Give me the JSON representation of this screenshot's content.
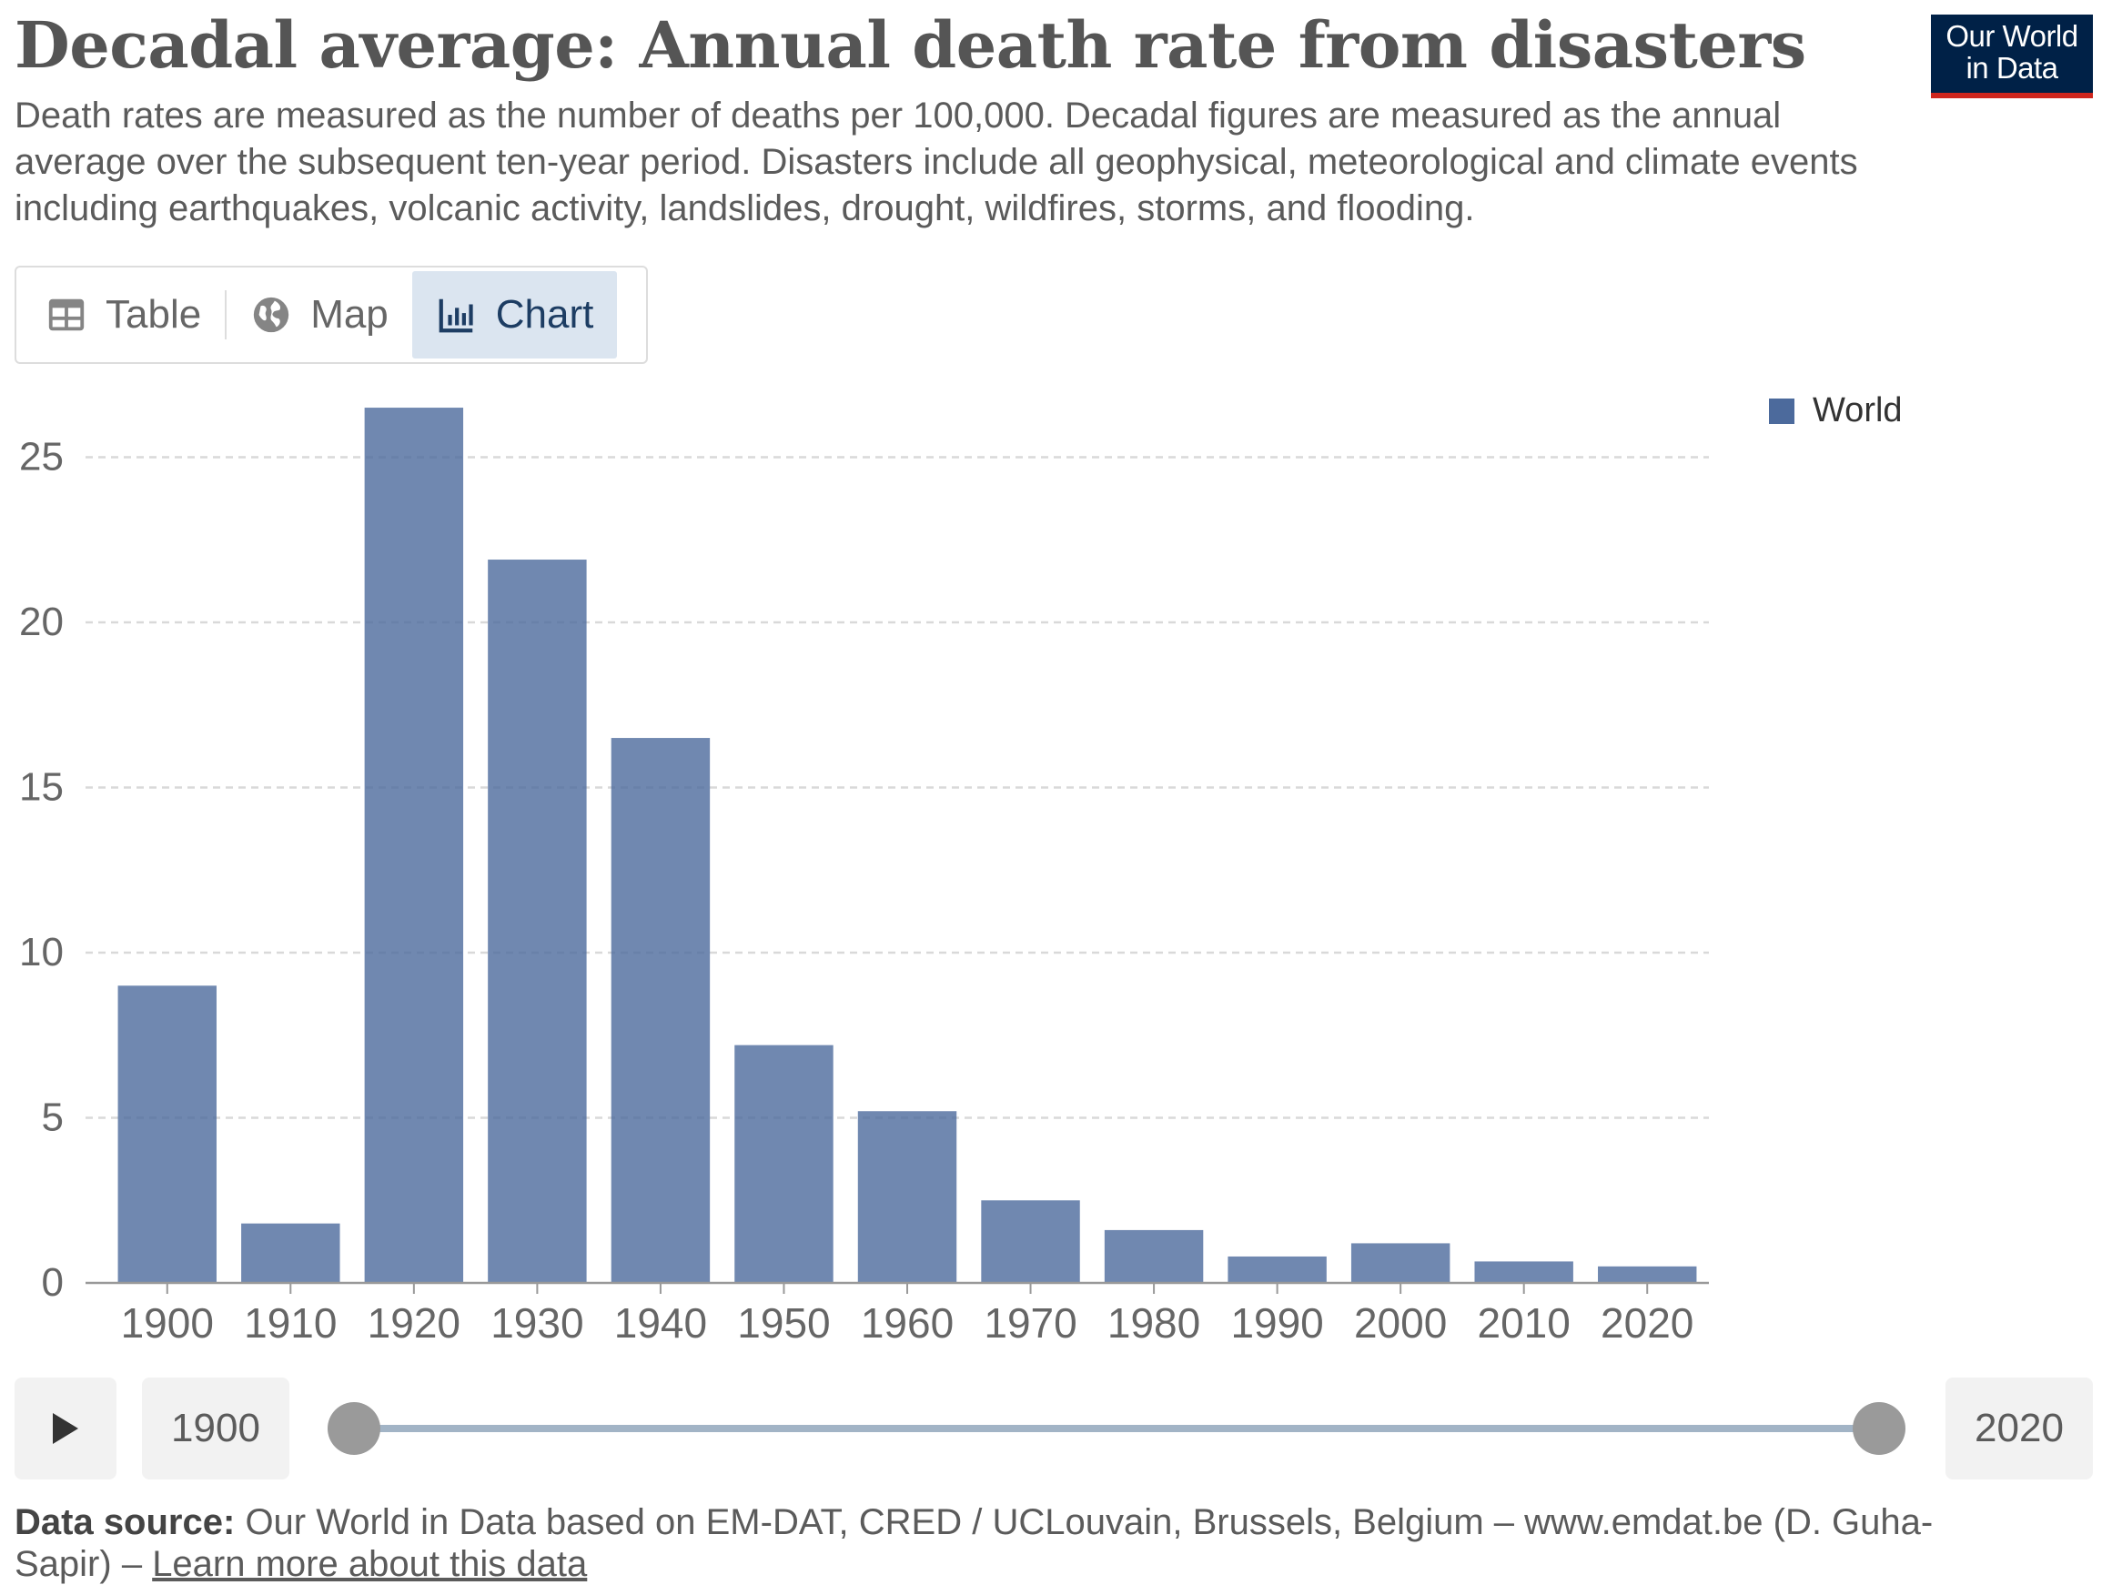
{
  "header": {
    "title": "Decadal average: Annual death rate from disasters",
    "subtitle": "Death rates are measured as the number of deaths per 100,000. Decadal figures are measured as the annual average over the subsequent ten-year period. Disasters include all geophysical, meteorological and climate events including earthquakes, volcanic activity, landslides, drought, wildfires, storms, and flooding."
  },
  "logo": {
    "line1": "Our World",
    "line2": "in Data",
    "bg_color": "#002147",
    "accent_color": "#ce261e"
  },
  "tabs": [
    {
      "label": "Table",
      "icon": "table-icon",
      "active": false
    },
    {
      "label": "Map",
      "icon": "globe-icon",
      "active": false
    },
    {
      "label": "Chart",
      "icon": "bar-chart-icon",
      "active": true
    }
  ],
  "chart_data": {
    "type": "bar",
    "categories": [
      "1900",
      "1910",
      "1920",
      "1930",
      "1940",
      "1950",
      "1960",
      "1970",
      "1980",
      "1990",
      "2000",
      "2010",
      "2020"
    ],
    "series": [
      {
        "name": "World",
        "color": "#4c6a9c",
        "values": [
          9.0,
          1.8,
          26.5,
          21.9,
          16.5,
          7.2,
          5.2,
          2.5,
          1.6,
          0.8,
          1.2,
          0.65,
          0.5
        ]
      }
    ],
    "yticks": [
      0,
      5,
      10,
      15,
      20,
      25
    ],
    "ylim": [
      0,
      27
    ],
    "grid": true,
    "legend_position": "top-right"
  },
  "timeline": {
    "start_label": "1900",
    "end_label": "2020"
  },
  "footer": {
    "source_label": "Data source:",
    "source_text": "Our World in Data based on EM-DAT, CRED / UCLouvain, Brussels, Belgium – www.emdat.be (D. Guha-Sapir) –",
    "learn_more": "Learn more about this data"
  }
}
